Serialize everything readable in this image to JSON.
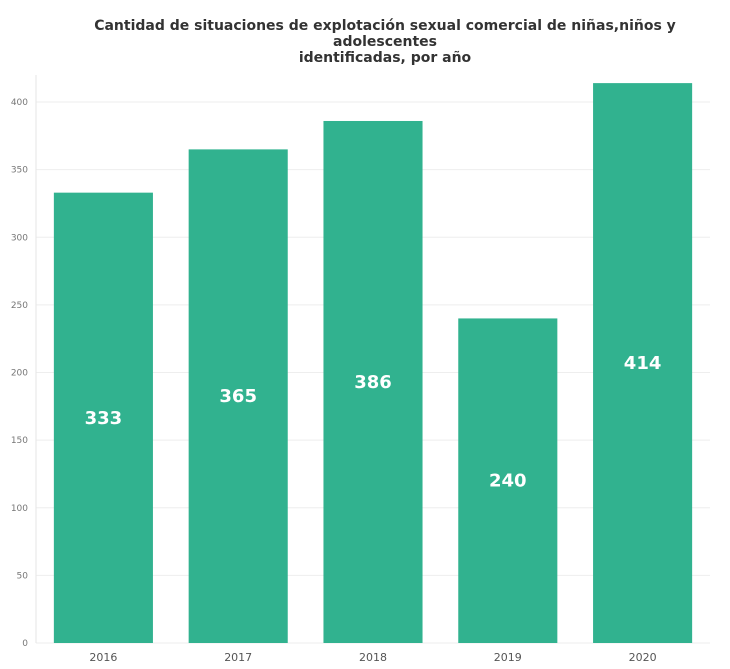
{
  "chart_data": {
    "type": "bar",
    "title_line1": "Cantidad de situaciones de explotación sexual comercial de niñas,niños y adolescentes",
    "title_line2": "identificadas, por año",
    "categories": [
      "2016",
      "2017",
      "2018",
      "2019",
      "2020"
    ],
    "values": [
      333,
      365,
      386,
      240,
      414
    ],
    "data_labels": [
      "333",
      "365",
      "386",
      "240",
      "414"
    ],
    "yticks": [
      "0",
      "50",
      "100",
      "150",
      "200",
      "250",
      "300",
      "350",
      "400"
    ],
    "ylim": [
      0,
      420
    ],
    "grid": true,
    "bar_color": "#31b28f",
    "grid_color": "#eeeeee",
    "xlabel": "",
    "ylabel": ""
  }
}
